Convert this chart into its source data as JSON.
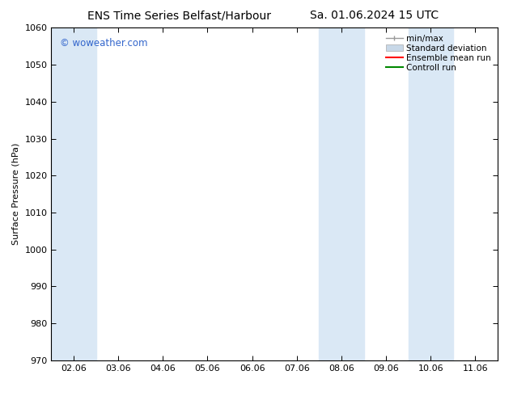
{
  "title_left": "ENS Time Series Belfast/Harbour",
  "title_right": "Sa. 01.06.2024 15 UTC",
  "ylabel": "Surface Pressure (hPa)",
  "ylim": [
    970,
    1060
  ],
  "yticks": [
    970,
    980,
    990,
    1000,
    1010,
    1020,
    1030,
    1040,
    1050,
    1060
  ],
  "xtick_labels": [
    "02.06",
    "03.06",
    "04.06",
    "05.06",
    "06.06",
    "07.06",
    "08.06",
    "09.06",
    "10.06",
    "11.06"
  ],
  "bg_color": "#ffffff",
  "plot_bg_color": "#ffffff",
  "band_ranges": [
    [
      0,
      1
    ],
    [
      6,
      7
    ],
    [
      8,
      9
    ]
  ],
  "watermark_text": "© woweather.com",
  "watermark_color": "#3366cc",
  "title_fontsize": 10,
  "axis_fontsize": 8,
  "tick_fontsize": 8,
  "figsize": [
    6.34,
    4.9
  ],
  "dpi": 100,
  "shaded_color": "#dae8f5",
  "spine_color": "#000000",
  "legend_fontsize": 7.5
}
